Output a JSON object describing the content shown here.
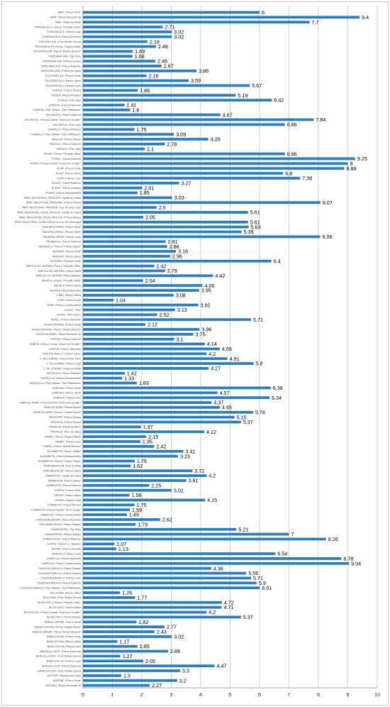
{
  "chart_data": {
    "type": "bar",
    "orientation": "horizontal",
    "title": "",
    "xlabel": "",
    "ylabel": "",
    "xlim": [
      0,
      10
    ],
    "xticks": [
      0,
      1,
      2,
      3,
      4,
      5,
      6,
      7,
      8,
      9,
      10
    ],
    "grid": true,
    "legend": "none",
    "bar_color": "#2a7fc1",
    "categories": [
      "UBAT >Parcul Verde",
      "UBAT >Parcul Bucuresti 16",
      "UBAT >Padurea Verde",
      "TOMOVALULUI >Parcul \"Pompiliu Stefu\"",
      "TOMOVALULUI >Parcul Cugir",
      "TOMOVALULUI >Parcul Bucovina",
      "TOMOVALULUI >Parc Strada Orsova",
      "TIPOGRAFILOR >Parcul \"Regina Maria\"",
      "TIPOGRAFILOR >Parcul \"Andrei Mocioni\"",
      "TIMISOARA SUD >Toy Story",
      "TIMISOARA SUD >Parcul Sudului",
      "TIMISOARA SUD >Parcul Padurice",
      "TIMISOARA SUD >Parcul de Joaca",
      "TELEGRAFULUI >Parcul Verde",
      "TELEGRAFULUI >Parcul Uzinei",
      "TELEGRAFULUI >Parcul Lunei",
      "STEAUA >Parcul Steaua",
      "STEAUA >Parcul Arcidava",
      "STEAUA >Parc copii",
      "STADION >Parcul Karlsruhe",
      "STADION >Parc Stadion \"Dan Paltinisanu\"",
      "SOLVENTUL >Parcul Ciabuvet",
      "SOLVENTUL >Parcul Central \"Anton von Scudier\"",
      "SOLVENTUL >Parc copii",
      "SOARELUI >Parcul Padurice",
      "SOARELUI >Parc Stadion \"Dan Paltinisanu\"",
      "SAGULUI >Parcul Steaua",
      "SAGULUI >Parcul Ciabuvet",
      "SAGULUI >Parc copii",
      "RONAT >Parcul \"Pompiliu Stefu\"",
      "RONAT >Parcul Ciabuvet",
      "RONAT >Parcul Central \"Anton von Scudier\"",
      "PLOPI >Parcul Verde",
      "PLOPI >Parcul Uzinei",
      "PLOPI >Parcul Lunei",
      "PLAVAT >Parcul Padurice",
      "PLAVAT >Parcul Arcidava",
      "PLAVAT >Parcul Adolescentilor",
      "PARC INDUSTRIAL FREIDORF >Spatiu de Joaca",
      "PARC INDUSTRIAL FREIDORF >Parcul Steaua",
      "PARC INDUSTRIAL FREIDORF >Loc de joaca copii",
      "PARC INDUSTRIAL CALEA SAGULUI >Spatiu de Joaca",
      "PARC INDUSTRIAL CALEA SAGULUI >Parcul Steaua",
      "PARC INDUSTRIAL CALEA SAGULUI >Loc de joaca copii",
      "PADUREA VERDE >Parcul Verde",
      "PADUREA VERDE >Parcul Uzinei",
      "PADUREA VERDE >Parcul Lunei",
      "ODOBESCU >Parcul Ciabuvet",
      "ODOBESCU >Parcul \"Carmen Sylva\"",
      "MODERN >Parcul Verde",
      "MODERN >Parcul Uzinei",
      "MODERN >Padurea Verde",
      "MIRCEA CEL BATRAN >Parcul \"Pompiliu Stefu\"",
      "MIRCEA CEL BATRAN >Parcul Dacia",
      "MIRCEA CEL BATRAN >Parcul Botanic",
      "MEHALA >Parcul \"Pompiliu Stefu\"",
      "MEHALA >Parcul Dacia",
      "MEHALA >Parcul Bucovina",
      "LUNEI >Parcul Uzinei",
      "LUNEI >Parcul Lunei",
      "LUNEI >Parcul Constructorilor",
      "KUNCZ >Parc",
      "KUNCZ >Parc Kuncz",
      "KUNCZ >Parcul Karlsruhe",
      "KOGALNICEANU >Parcul Verde",
      "KOGALNICEANU >Parcul \"Andrei Mocioni\"",
      "KOGALNICEANU >Parcul Bucuresti 16",
      "IOSEFIN >Parcul Ciabuvet",
      "IOSEFIN >Parcul Central \"Anton von Scudier\"",
      "IOSEFIN >Parcul Catedralei",
      "IOSEFIN >Parcul \"Carmen Sylva\"",
      "I.I. DE LA BRAD >Parcul Iulius Town",
      "I.I. DE LA BRAD >Parcul Cugir",
      "I.I. DE LA BRAD >Padurea Verde",
      "GIROCULUI >Parcul Padurice",
      "GIROCULUI >Parcul Adolescentilor",
      "GIROCULUI >Parc Stadion \"Dan Paltinisanu\"",
      "GHIRODA >Parcul Verde",
      "GHIRODA >Parcul Uzinei",
      "GHIRODA >Parcul Lunei",
      "GARA DE NORD >Parcul Central \"Anton von Scudier\"",
      "GARA DE NORD >Parcul Alpinet",
      "GARA DE NORD >Parcul \"Carmen Sylva\"",
      "FRIGIDORF >Parcul Steaua",
      "FRATELIA >Parcul Steaua",
      "FRATELIA >Parcul Arcidava",
      "FRATELIA >Parc de Joaca",
      "FABRIC >Parcul \"Regina Maria\"",
      "FABRIC >Parcul Lunei",
      "FABRIC >Parcul \"Andrei Mocioni\"",
      "ELISABETIN >Parcul Justitiei",
      "ELISABETIN >Parcul Adolescentilor",
      "ELISABETIN >Parcul \"Carmen Sylva\"",
      "DOROBANTILOR >Parcul Verde",
      "DOROBANTILOR >Parcul Uzinei",
      "DAMBOVITA >Spatiu de Joaca",
      "DAMBOVITA >Parcul Steaua",
      "DAMBOVITA >Parcul Ciabuvet",
      "CRISAN >Parcul Verde",
      "CRISAN >Parcul Uzinei",
      "CRISAN >Parcul Lunei",
      "COMUFLEX >Parcul Rozelor",
      "COMUFLEX >Parcul Copiilor \"Ion Creanga\"",
      "COMUFLEX >Parcul Constructorilor",
      "CIRCUMVALATIUNII >Parcul Bucovina",
      "CIRCUMVALATIUNII >Parcul Botanic",
      "CIANDA ROSU >Toy Story",
      "CIANDA ROSU >Parcul Sudului",
      "CIANDA ROSU >Parcul Padurice",
      "CETATE >Parcul I.C. Bratianu",
      "CETATE >Parcul Huniade",
      "CAMPULUI >Parcul Lunei",
      "CAMPULUI >Parcul Karlsruhe",
      "CAMPULUI >Parcul Constructorilor",
      "CALEA BUZIASULUI >Parcul Sudului",
      "CALEA BUZIASULUI >Parcul Stadion",
      "CALEA BUZIASULUI >Parcul Lunei",
      "CALEA BUZIASULUI >Parcul Padurice",
      "CALEA BUZIASULUI >Parc Stadion \"Dan Paltinisanu\"",
      "BUCOVINA >Parcul Uzinei",
      "BUCOVINA >Parc Strada Orsova",
      "BLASCOVICI >Parcul \"Pompiliu Stefu\"",
      "BLASCOVICI >Parcul Dacia",
      "BLASCOVICI >Parcul Central \"Anton von Scudier\"",
      "BLASCOVICI >Parcul Botanic",
      "BADEA CARTAN >Parcul Verde",
      "BADEA CARTAN >Parcul \"Regina Maria\"",
      "BADEA CARTAN >Parcul \"Andrei Mocioni\"",
      "BABA DOCHIA >Parcul Verde",
      "BABA DOCHIA >Parcul Uzinei",
      "BABA DOCHIA >Parcul Lunei",
      "ARADULUI VEST >Parcul Bucovina",
      "ARADULUI VEST >Parc Strada Orsova",
      "ARADULUI EST >Parcul Cugir",
      "ARADULUI EST >Parcul Bucovina",
      "ARADULUI EST >Parc Strada Orsova",
      "ANTENEI >Parcul Iulius Town",
      "ANTENEI >Parcul Verde",
      "ANTENEI >Parcul Bucuresti 16"
    ],
    "values": [
      6,
      9.4,
      7.7,
      2.71,
      3.02,
      3.02,
      2.19,
      2.48,
      1.69,
      1.68,
      2.46,
      2.67,
      3.86,
      2.16,
      3.59,
      5.67,
      1.86,
      5.19,
      6.42,
      1.41,
      1.6,
      4.67,
      7.84,
      6.86,
      1.75,
      3.09,
      4.26,
      2.78,
      2.1,
      6.86,
      9.25,
      9,
      8.88,
      6.8,
      7.38,
      3.27,
      2.01,
      1.85,
      3.03,
      8.07,
      2.5,
      5.61,
      2.05,
      5.61,
      5.63,
      5.39,
      8.06,
      2.81,
      2.86,
      3.16,
      2.96,
      6.4,
      2.42,
      2.79,
      4.42,
      2.04,
      4.06,
      3.95,
      3.08,
      1.04,
      3.92,
      3.13,
      2.52,
      5.71,
      2.12,
      3.96,
      3.75,
      3.1,
      4.14,
      4.65,
      4.2,
      4.91,
      5.8,
      4.27,
      1.42,
      1.33,
      1.83,
      6.38,
      4.57,
      6.34,
      4.37,
      4.65,
      5.78,
      5.15,
      5.37,
      1.97,
      4.12,
      2.15,
      1.95,
      2.42,
      3.41,
      3.23,
      1.76,
      1.62,
      3.72,
      4.2,
      3.51,
      2.25,
      3.01,
      1.58,
      4.15,
      1.75,
      1.59,
      1.49,
      2.62,
      1.79,
      5.21,
      7,
      8.26,
      1.07,
      1.13,
      6.54,
      8.78,
      9.04,
      4.36,
      5.55,
      5.71,
      5.9,
      6.01,
      1.26,
      1.77,
      4.72,
      4.71,
      4.2,
      5.37,
      1.82,
      2.77,
      2.43,
      3.02,
      1.17,
      1.85,
      2.89,
      1.27,
      2.05,
      4.47,
      3.3,
      1.3,
      3.2,
      2.27
    ]
  }
}
